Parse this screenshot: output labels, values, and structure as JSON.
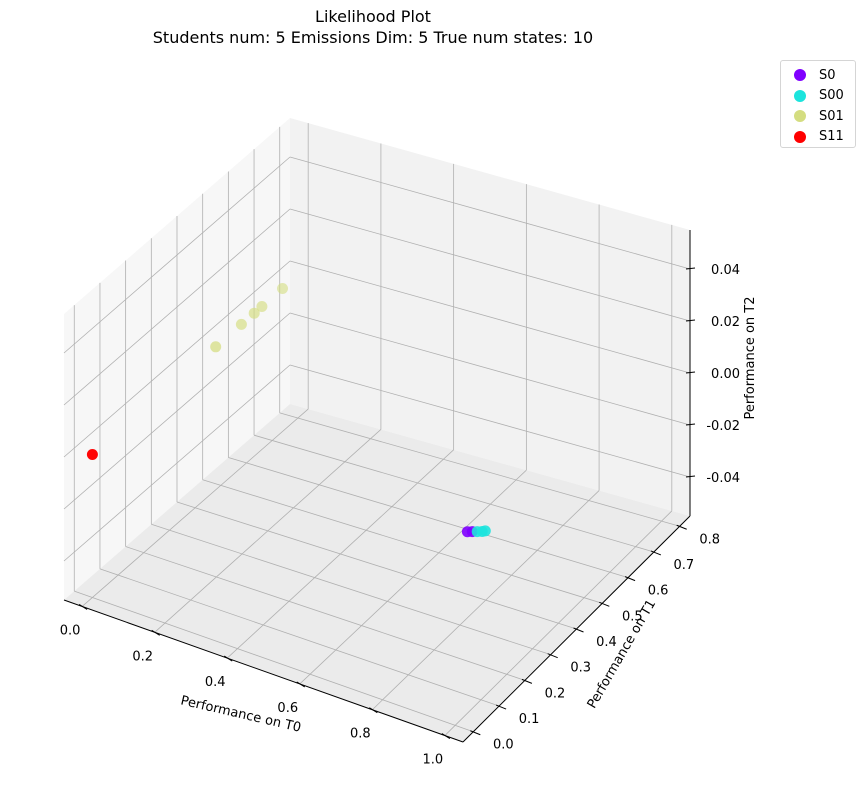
{
  "title": "Likelihood Plot",
  "subtitle": "Students num: 5 Emissions Dim: 5 True num states: 10",
  "chart_data": {
    "type": "scatter",
    "projection": "3d",
    "xlabel": "Performance on T0",
    "ylabel": "Performance on T1",
    "zlabel": "Performance on T2",
    "xlim": [
      -0.05,
      1.05
    ],
    "ylim": [
      -0.04,
      0.84
    ],
    "zlim": [
      -0.055,
      0.055
    ],
    "xticks": [
      "0.0",
      "0.2",
      "0.4",
      "0.6",
      "0.8",
      "1.0"
    ],
    "xtick_values": [
      0.0,
      0.2,
      0.4,
      0.6,
      0.8,
      1.0
    ],
    "yticks": [
      "0.0",
      "0.1",
      "0.2",
      "0.3",
      "0.4",
      "0.5",
      "0.6",
      "0.7",
      "0.8"
    ],
    "ytick_values": [
      0.0,
      0.1,
      0.2,
      0.3,
      0.4,
      0.5,
      0.6,
      0.7,
      0.8
    ],
    "zticks": [
      "-0.04",
      "-0.02",
      "0.00",
      "0.02",
      "0.04"
    ],
    "ztick_values": [
      -0.04,
      -0.02,
      0.0,
      0.02,
      0.04
    ],
    "grid": true,
    "legend_position": "upper-right-outside",
    "series": [
      {
        "name": "S0",
        "color": "#8000ff",
        "points": [
          [
            0.92,
            0.16,
            0.0
          ],
          [
            0.93,
            0.165,
            0.0
          ]
        ]
      },
      {
        "name": "S00",
        "color": "#1ce4dd",
        "points": [
          [
            0.94,
            0.17,
            0.0
          ],
          [
            0.95,
            0.175,
            0.0
          ],
          [
            0.955,
            0.18,
            0.0
          ]
        ]
      },
      {
        "name": "S01",
        "color": "#d4dd80",
        "points": [
          [
            0.0,
            0.48,
            0.0
          ],
          [
            0.0,
            0.58,
            0.0
          ],
          [
            0.0,
            0.63,
            0.0
          ],
          [
            0.0,
            0.66,
            0.0
          ],
          [
            0.0,
            0.74,
            0.0
          ]
        ]
      },
      {
        "name": "S11",
        "color": "#ff0000",
        "points": [
          [
            0.0,
            0.0,
            0.0
          ]
        ]
      }
    ]
  }
}
